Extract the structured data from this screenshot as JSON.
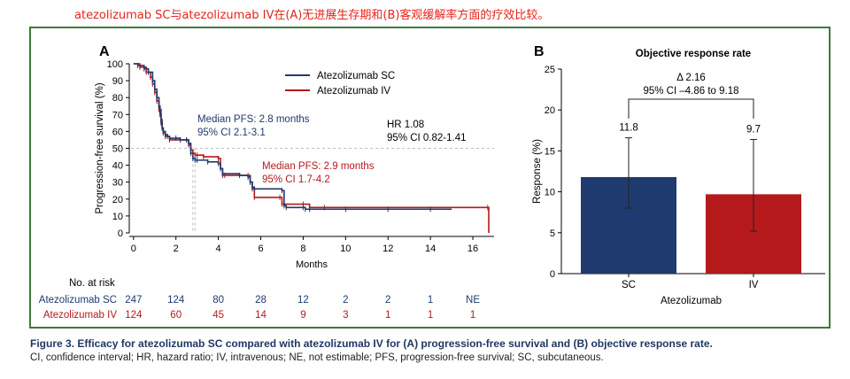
{
  "page_title": "atezolizumab SC与atezolizumab IV在(A)无进展生存期和(B)客观缓解率方面的疗效比较。",
  "caption": {
    "title": "Figure 3.  Efficacy for atezolizumab SC compared with atezolizumab IV for (A) progression-free survival and (B) objective response rate.",
    "note": "CI, confidence interval; HR, hazard ratio; IV, intravenous; NE, not estimable; PFS, progression-free survival; SC, subcutaneous."
  },
  "colors": {
    "sc": "#1f3a6e",
    "iv": "#b5191c",
    "frame": "#3f7a3a",
    "title": "#e8231b",
    "ref_line": "#bfbfbf"
  },
  "chart_data": [
    {
      "panel": "A",
      "type": "line",
      "subtype": "kaplan-meier step",
      "xlabel": "Months",
      "ylabel": "Progression-free survival (%)",
      "xlim": [
        -0.2,
        17
      ],
      "ylim": [
        0,
        100
      ],
      "xticks": [
        0,
        2,
        4,
        6,
        8,
        10,
        12,
        14,
        16
      ],
      "yticks": [
        0,
        10,
        20,
        30,
        40,
        50,
        60,
        70,
        80,
        90,
        100
      ],
      "reference_line_y": 50,
      "median_lines_x": [
        2.8,
        2.9
      ],
      "legend": {
        "position": "top-right",
        "entries": [
          "Atezolizumab SC",
          "Atezolizumab IV"
        ]
      },
      "hr_text": {
        "line1": "HR 1.08",
        "line2": "95% CI 0.82-1.41"
      },
      "annotations": [
        {
          "series": "sc",
          "line1": "Median PFS: 2.8 months",
          "line2": "95% CI 2.1-3.1"
        },
        {
          "series": "iv",
          "line1": "Median PFS: 2.9 months",
          "line2": "95% CI 1.7-4.2"
        }
      ],
      "series": [
        {
          "name": "Atezolizumab SC",
          "key": "sc",
          "x": [
            0,
            0.2,
            0.5,
            0.7,
            0.9,
            1.0,
            1.1,
            1.2,
            1.25,
            1.3,
            1.35,
            1.4,
            1.5,
            1.6,
            1.7,
            2.0,
            2.2,
            2.5,
            2.6,
            2.7,
            2.8,
            2.9,
            3.0,
            3.5,
            4.0,
            4.1,
            4.2,
            5.0,
            5.4,
            5.5,
            5.6,
            5.7,
            7.0,
            7.1,
            7.2,
            8.0,
            8.1,
            8.3,
            10.0,
            12.0,
            14.0,
            15.0
          ],
          "y": [
            100,
            99,
            97,
            95,
            90,
            85,
            80,
            75,
            70,
            65,
            62,
            60,
            58,
            57,
            56,
            56,
            55,
            55,
            53,
            47,
            44,
            43,
            43,
            42,
            41,
            38,
            35,
            34,
            33,
            30,
            27,
            26,
            25,
            16,
            15,
            15,
            14,
            14,
            14,
            14,
            14,
            14
          ]
        },
        {
          "name": "Atezolizumab IV",
          "key": "iv",
          "x": [
            0,
            0.3,
            0.6,
            0.8,
            0.9,
            1.0,
            1.1,
            1.2,
            1.3,
            1.35,
            1.4,
            1.5,
            1.7,
            2.5,
            2.6,
            2.7,
            2.8,
            2.9,
            3.0,
            3.3,
            4.0,
            4.1,
            4.2,
            4.3,
            5.4,
            5.5,
            5.6,
            5.7,
            6.9,
            7.0,
            8.0,
            8.3,
            9.0,
            16.7,
            16.75
          ],
          "y": [
            100,
            98,
            95,
            92,
            88,
            83,
            78,
            73,
            67,
            62,
            59,
            57,
            55,
            55,
            52,
            49,
            47,
            46,
            46,
            45,
            44,
            38,
            34,
            34,
            34,
            30,
            26,
            21,
            21,
            17,
            17,
            15,
            15,
            15,
            0
          ]
        }
      ],
      "risk_table": {
        "title": "No. at risk",
        "timepoints": [
          0,
          2,
          4,
          6,
          8,
          10,
          12,
          14,
          16
        ],
        "rows": [
          {
            "name": "Atezolizumab SC",
            "key": "sc",
            "values": [
              "247",
              "124",
              "80",
              "28",
              "12",
              "2",
              "2",
              "1",
              "NE"
            ]
          },
          {
            "name": "Atezolizumab IV",
            "key": "iv",
            "values": [
              "124",
              "60",
              "45",
              "14",
              "9",
              "3",
              "1",
              "1",
              "1"
            ]
          }
        ]
      }
    },
    {
      "panel": "B",
      "type": "bar",
      "title": "Objective response rate",
      "categories": [
        "SC",
        "IV"
      ],
      "values": [
        11.8,
        9.7
      ],
      "error_bars": [
        [
          8.0,
          16.6
        ],
        [
          5.2,
          16.4
        ]
      ],
      "xlabel": "Atezolizumab",
      "ylabel": "Response (%)",
      "ylim": [
        0,
        25
      ],
      "yticks": [
        0,
        5,
        10,
        15,
        20,
        25
      ],
      "comparison": {
        "line1": "Δ 2.16",
        "line2": "95% CI –4.86 to 9.18"
      }
    }
  ]
}
